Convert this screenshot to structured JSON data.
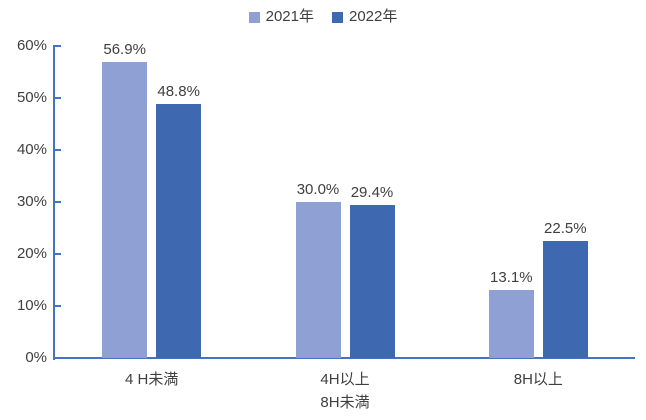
{
  "chart_data": {
    "type": "bar",
    "title": "",
    "xlabel": "",
    "ylabel": "",
    "categories": [
      "4 H未満",
      "4H以上\n8H未満",
      "8H以上"
    ],
    "series": [
      {
        "name": "2021年",
        "color": "#8EA0D4",
        "values": [
          56.9,
          30.0,
          13.1
        ],
        "labels": [
          "56.9%",
          "30.0%",
          "13.1%"
        ]
      },
      {
        "name": "2022年",
        "color": "#3E68B0",
        "values": [
          48.8,
          29.4,
          22.5
        ],
        "labels": [
          "48.8%",
          "29.4%",
          "22.5%"
        ]
      }
    ],
    "ylim": [
      0,
      60
    ],
    "ytick_step": 10,
    "ytick_labels": [
      "0%",
      "10%",
      "20%",
      "30%",
      "40%",
      "50%",
      "60%"
    ],
    "grid": false,
    "legend_position": "top-center",
    "axis_color": "#4472C4",
    "text_color": "#3f3f3f",
    "background_color": "#ffffff",
    "value_labels_shown": true
  }
}
